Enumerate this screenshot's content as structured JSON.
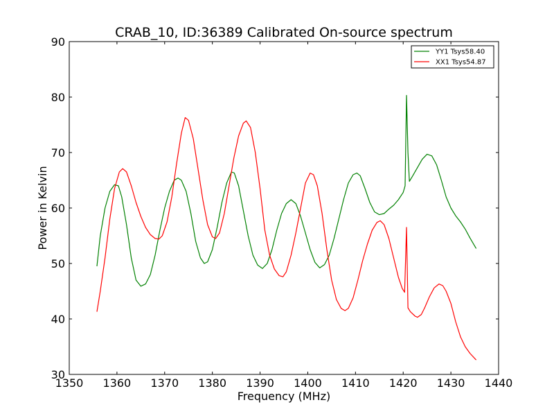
{
  "chart_data": {
    "type": "line",
    "title": "CRAB_10, ID:36389 Calibrated On-source spectrum",
    "xlabel": "Frequency (MHz)",
    "ylabel": "Power in Kelvin",
    "xlim": [
      1350,
      1440
    ],
    "ylim": [
      30,
      90
    ],
    "xticks": [
      1350,
      1360,
      1370,
      1380,
      1390,
      1400,
      1410,
      1420,
      1430,
      1440
    ],
    "yticks": [
      30,
      40,
      50,
      60,
      70,
      80,
      90
    ],
    "grid": false,
    "legend_position": "top-right",
    "series": [
      {
        "name": "YY1 Tsys58.40",
        "color": "#008000",
        "points": [
          [
            1355.8,
            49.5
          ],
          [
            1356.5,
            55.0
          ],
          [
            1357.5,
            60.0
          ],
          [
            1358.5,
            63.0
          ],
          [
            1359.5,
            64.2
          ],
          [
            1360.3,
            64.0
          ],
          [
            1361.0,
            62.0
          ],
          [
            1362.0,
            57.0
          ],
          [
            1363.0,
            51.0
          ],
          [
            1364.0,
            47.0
          ],
          [
            1365.0,
            45.9
          ],
          [
            1366.0,
            46.3
          ],
          [
            1367.0,
            48.0
          ],
          [
            1368.0,
            51.5
          ],
          [
            1369.0,
            56.0
          ],
          [
            1370.0,
            60.0
          ],
          [
            1371.0,
            63.0
          ],
          [
            1372.0,
            65.0
          ],
          [
            1372.8,
            65.4
          ],
          [
            1373.5,
            65.0
          ],
          [
            1374.5,
            63.0
          ],
          [
            1375.5,
            59.0
          ],
          [
            1376.5,
            54.0
          ],
          [
            1377.5,
            51.0
          ],
          [
            1378.3,
            50.0
          ],
          [
            1379.0,
            50.3
          ],
          [
            1380.0,
            52.5
          ],
          [
            1381.0,
            56.5
          ],
          [
            1382.0,
            61.0
          ],
          [
            1383.0,
            64.5
          ],
          [
            1384.0,
            66.5
          ],
          [
            1384.6,
            66.3
          ],
          [
            1385.5,
            64.0
          ],
          [
            1386.5,
            59.5
          ],
          [
            1387.5,
            55.0
          ],
          [
            1388.5,
            51.5
          ],
          [
            1389.5,
            49.7
          ],
          [
            1390.5,
            49.1
          ],
          [
            1391.5,
            50.0
          ],
          [
            1392.5,
            52.5
          ],
          [
            1393.5,
            56.0
          ],
          [
            1394.5,
            59.0
          ],
          [
            1395.5,
            60.8
          ],
          [
            1396.5,
            61.5
          ],
          [
            1397.5,
            60.8
          ],
          [
            1398.5,
            58.5
          ],
          [
            1399.5,
            55.5
          ],
          [
            1400.5,
            52.5
          ],
          [
            1401.5,
            50.2
          ],
          [
            1402.5,
            49.2
          ],
          [
            1403.5,
            49.8
          ],
          [
            1404.5,
            51.5
          ],
          [
            1405.5,
            54.5
          ],
          [
            1406.5,
            58.0
          ],
          [
            1407.5,
            61.5
          ],
          [
            1408.5,
            64.5
          ],
          [
            1409.5,
            66.0
          ],
          [
            1410.3,
            66.3
          ],
          [
            1411.0,
            65.8
          ],
          [
            1412.0,
            63.5
          ],
          [
            1413.0,
            61.0
          ],
          [
            1414.0,
            59.3
          ],
          [
            1415.0,
            58.8
          ],
          [
            1416.0,
            59.0
          ],
          [
            1417.0,
            59.8
          ],
          [
            1418.0,
            60.5
          ],
          [
            1419.0,
            61.5
          ],
          [
            1420.0,
            62.8
          ],
          [
            1420.4,
            64.0
          ],
          [
            1420.7,
            80.3
          ],
          [
            1421.0,
            70.0
          ],
          [
            1421.3,
            64.8
          ],
          [
            1422.0,
            65.8
          ],
          [
            1423.0,
            67.3
          ],
          [
            1424.0,
            68.8
          ],
          [
            1425.0,
            69.7
          ],
          [
            1426.0,
            69.4
          ],
          [
            1427.0,
            67.8
          ],
          [
            1428.0,
            65.0
          ],
          [
            1429.0,
            62.0
          ],
          [
            1430.0,
            60.0
          ],
          [
            1431.0,
            58.6
          ],
          [
            1432.0,
            57.5
          ],
          [
            1433.0,
            56.2
          ],
          [
            1434.0,
            54.6
          ],
          [
            1435.3,
            52.7
          ]
        ]
      },
      {
        "name": "XX1 Tsys54.87",
        "color": "#ff0000",
        "points": [
          [
            1355.8,
            41.3
          ],
          [
            1356.5,
            45.0
          ],
          [
            1357.5,
            51.0
          ],
          [
            1358.5,
            58.0
          ],
          [
            1359.5,
            63.5
          ],
          [
            1360.5,
            66.5
          ],
          [
            1361.2,
            67.1
          ],
          [
            1362.0,
            66.5
          ],
          [
            1363.0,
            64.0
          ],
          [
            1364.0,
            61.0
          ],
          [
            1365.0,
            58.5
          ],
          [
            1366.0,
            56.5
          ],
          [
            1367.0,
            55.2
          ],
          [
            1368.0,
            54.5
          ],
          [
            1368.8,
            54.4
          ],
          [
            1369.5,
            55.0
          ],
          [
            1370.5,
            57.5
          ],
          [
            1371.5,
            62.0
          ],
          [
            1372.5,
            68.0
          ],
          [
            1373.5,
            73.5
          ],
          [
            1374.3,
            76.3
          ],
          [
            1375.0,
            75.8
          ],
          [
            1376.0,
            72.5
          ],
          [
            1377.0,
            67.0
          ],
          [
            1378.0,
            61.5
          ],
          [
            1379.0,
            57.0
          ],
          [
            1380.0,
            54.8
          ],
          [
            1380.7,
            54.5
          ],
          [
            1381.5,
            55.5
          ],
          [
            1382.5,
            59.0
          ],
          [
            1383.5,
            64.0
          ],
          [
            1384.5,
            69.0
          ],
          [
            1385.5,
            73.0
          ],
          [
            1386.5,
            75.3
          ],
          [
            1387.1,
            75.7
          ],
          [
            1388.0,
            74.5
          ],
          [
            1389.0,
            70.0
          ],
          [
            1390.0,
            63.5
          ],
          [
            1391.0,
            56.0
          ],
          [
            1392.0,
            51.5
          ],
          [
            1393.0,
            49.0
          ],
          [
            1394.0,
            47.8
          ],
          [
            1394.8,
            47.6
          ],
          [
            1395.5,
            48.5
          ],
          [
            1396.5,
            51.5
          ],
          [
            1397.5,
            55.5
          ],
          [
            1398.5,
            60.0
          ],
          [
            1399.5,
            64.5
          ],
          [
            1400.5,
            66.3
          ],
          [
            1401.2,
            66.0
          ],
          [
            1402.0,
            64.0
          ],
          [
            1403.0,
            59.0
          ],
          [
            1404.0,
            52.5
          ],
          [
            1405.0,
            47.0
          ],
          [
            1406.0,
            43.5
          ],
          [
            1407.0,
            41.9
          ],
          [
            1407.8,
            41.5
          ],
          [
            1408.5,
            41.9
          ],
          [
            1409.5,
            43.8
          ],
          [
            1410.5,
            47.0
          ],
          [
            1411.5,
            50.5
          ],
          [
            1412.5,
            53.5
          ],
          [
            1413.5,
            56.0
          ],
          [
            1414.5,
            57.4
          ],
          [
            1415.2,
            57.7
          ],
          [
            1416.0,
            57.0
          ],
          [
            1417.0,
            54.5
          ],
          [
            1418.0,
            51.0
          ],
          [
            1419.0,
            47.5
          ],
          [
            1419.8,
            45.5
          ],
          [
            1420.3,
            44.8
          ],
          [
            1420.7,
            56.5
          ],
          [
            1421.0,
            42.0
          ],
          [
            1421.5,
            41.3
          ],
          [
            1422.5,
            40.5
          ],
          [
            1423.0,
            40.3
          ],
          [
            1423.8,
            40.8
          ],
          [
            1424.5,
            42.0
          ],
          [
            1425.5,
            44.0
          ],
          [
            1426.5,
            45.6
          ],
          [
            1427.5,
            46.3
          ],
          [
            1428.3,
            46.0
          ],
          [
            1429.0,
            45.0
          ],
          [
            1430.0,
            42.8
          ],
          [
            1431.0,
            39.5
          ],
          [
            1432.0,
            36.8
          ],
          [
            1433.0,
            35.0
          ],
          [
            1434.0,
            33.8
          ],
          [
            1435.3,
            32.6
          ]
        ]
      }
    ]
  }
}
